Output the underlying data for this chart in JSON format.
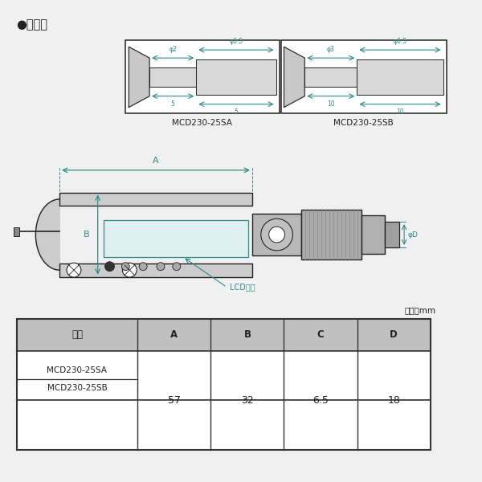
{
  "bg_color": "#f0f0f0",
  "title_bullet": "●寸法図",
  "table_header": [
    "品番",
    "A",
    "B",
    "C",
    "D"
  ],
  "table_rows": [
    [
      "MCD230-25SA",
      "57",
      "32",
      "6.5",
      "18"
    ],
    [
      "MCD230-25SB",
      "57",
      "32",
      "6.5",
      "18"
    ]
  ],
  "unit_label": "単位：mm",
  "model_sa": "MCD230-25SA",
  "model_sb": "MCD230-25SB",
  "detail_sa": {
    "phi1": "φ2",
    "phi2": "φ6.5",
    "dim1": "5",
    "dim2": "5"
  },
  "detail_sb": {
    "phi1": "φ3",
    "phi2": "φ6.5",
    "dim1": "10",
    "dim2": "10"
  },
  "lcd_label": "LCD表示",
  "draw_color": "#2e8b8b",
  "line_color": "#222222",
  "box_bg": "#ffffff",
  "header_bg": "#c0c0c0",
  "table_border": "#333333",
  "frame_color": "#cccccc",
  "rod_color": "#d4d4d4"
}
